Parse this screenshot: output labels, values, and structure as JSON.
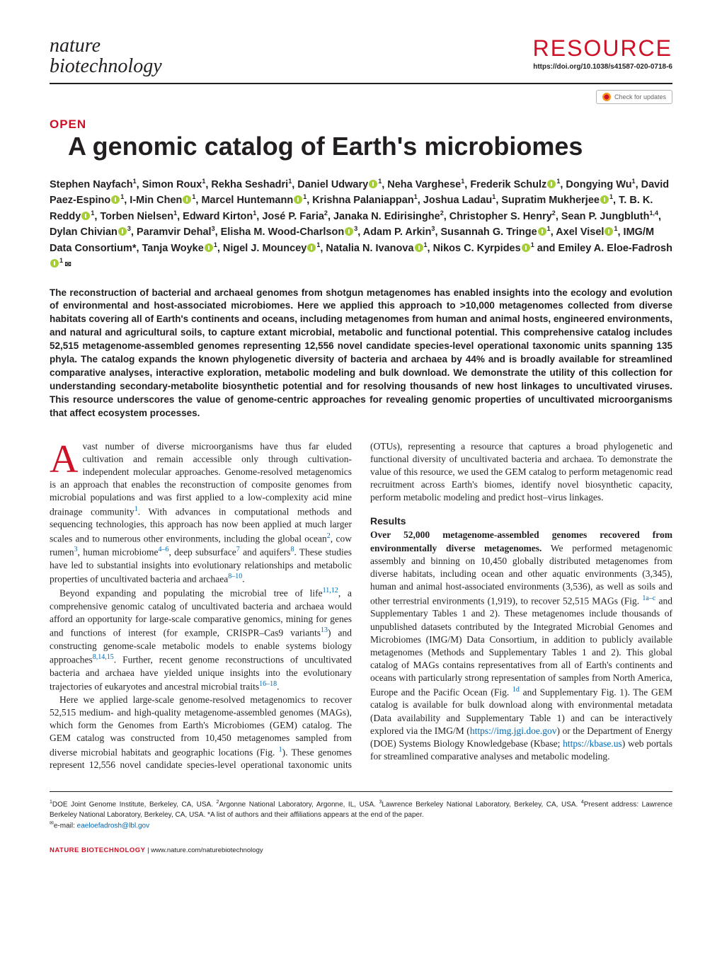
{
  "header": {
    "journal_line1": "nature",
    "journal_line2": "biotechnology",
    "section_label": "RESOURCE",
    "doi": "https://doi.org/10.1038/s41587-020-0718-6",
    "check_updates": "Check for updates"
  },
  "article": {
    "open_label": "OPEN",
    "title": "A genomic catalog of Earth's microbiomes"
  },
  "authors_html": "Stephen Nayfach<sup>1</sup>, Simon Roux<sup>1</sup>, Rekha Seshadri<sup>1</sup>, Daniel Udwary<span class='orcid'></span><sup>1</sup>, Neha Varghese<sup>1</sup>, Frederik Schulz<span class='orcid'></span><sup>1</sup>, Dongying Wu<sup>1</sup>, David Paez-Espino<span class='orcid'></span><sup>1</sup>, I-Min Chen<span class='orcid'></span><sup>1</sup>, Marcel Huntemann<span class='orcid'></span><sup>1</sup>, Krishna Palaniappan<sup>1</sup>, Joshua Ladau<sup>1</sup>, Supratim Mukherjee<span class='orcid'></span><sup>1</sup>, T. B. K. Reddy<span class='orcid'></span><sup>1</sup>, Torben Nielsen<sup>1</sup>, Edward Kirton<sup>1</sup>, José P. Faria<sup>2</sup>, Janaka N. Edirisinghe<sup>2</sup>, Christopher S. Henry<sup>2</sup>, Sean P. Jungbluth<sup>1,4</sup>, Dylan Chivian<span class='orcid'></span><sup>3</sup>, Paramvir Dehal<sup>3</sup>, Elisha M. Wood-Charlson<span class='orcid'></span><sup>3</sup>, Adam P. Arkin<sup>3</sup>, Susannah G. Tringe<span class='orcid'></span><sup>1</sup>, Axel Visel<span class='orcid'></span><sup>1</sup>, IMG/M Data Consortium*, Tanja Woyke<span class='orcid'></span><sup>1</sup>, Nigel J. Mouncey<span class='orcid'></span><sup>1</sup>, Natalia N. Ivanova<span class='orcid'></span><sup>1</sup>, Nikos C. Kyrpides<span class='orcid'></span><sup>1</sup> and Emiley A. Eloe-Fadrosh<span class='orcid'></span><sup>1 </sup><span class='mail-icon'></span>",
  "abstract": "The reconstruction of bacterial and archaeal genomes from shotgun metagenomes has enabled insights into the ecology and evolution of environmental and host-associated microbiomes. Here we applied this approach to >10,000 metagenomes collected from diverse habitats covering all of Earth's continents and oceans, including metagenomes from human and animal hosts, engineered environments, and natural and agricultural soils, to capture extant microbial, metabolic and functional potential. This comprehensive catalog includes 52,515 metagenome-assembled genomes representing 12,556 novel candidate species-level operational taxonomic units spanning 135 phyla. The catalog expands the known phylogenetic diversity of bacteria and archaea by 44% and is broadly available for streamlined comparative analyses, interactive exploration, metabolic modeling and bulk download. We demonstrate the utility of this collection for understanding secondary-metabolite biosynthetic potential and for resolving thousands of new host linkages to uncultivated viruses. This resource underscores the value of genome-centric approaches for revealing genomic properties of uncultivated microorganisms that affect ecosystem processes.",
  "body": {
    "p1": "vast number of diverse microorganisms have thus far eluded cultivation and remain accessible only through cultivation-independent molecular approaches. Genome-resolved metagenomics is an approach that enables the reconstruction of composite genomes from microbial populations and was first applied to a low-complexity acid mine drainage community",
    "p1b": ". With advances in computational methods and sequencing technologies, this approach has now been applied at much larger scales and to numerous other environments, including the global ocean",
    "p1c": ", cow rumen",
    "p1d": ", human microbiome",
    "p1e": ", deep subsurface",
    "p1f": " and aquifers",
    "p1g": ". These studies have led to substantial insights into evolutionary relationships and metabolic properties of uncultivated bacteria and archaea",
    "p1h": ".",
    "p2a": "Beyond expanding and populating the microbial tree of life",
    "p2b": ", a comprehensive genomic catalog of uncultivated bacteria and archaea would afford an opportunity for large-scale comparative genomics, mining for genes and functions of interest (for example, CRISPR–Cas9 variants",
    "p2c": ") and constructing genome-scale metabolic models to enable systems biology approaches",
    "p2d": ". Further, recent genome reconstructions of uncultivated bacteria and archaea have yielded unique insights into the evolutionary trajectories of eukaryotes and ancestral microbial traits",
    "p2e": ".",
    "p3": "Here we applied large-scale genome-resolved metagenomics to recover 52,515 medium- and high-quality metagenome-assembled genomes (MAGs), which form the Genomes from Earth's Microbiomes (GEM) catalog. The GEM catalog was constructed from 10,450 metagenomes sampled from diverse microbial habitats and geographic locations (Fig. ",
    "p3b": "). These genomes represent 12,556 novel candidate species-level operational taxonomic units",
    "p4": "(OTUs), representing a resource that captures a broad phylogenetic and functional diversity of uncultivated bacteria and archaea. To demonstrate the value of this resource, we used the GEM catalog to perform metagenomic read recruitment across Earth's biomes, identify novel biosynthetic capacity, perform metabolic modeling and predict host–virus linkages.",
    "results_head": "Results",
    "p5_runin": "Over 52,000 metagenome-assembled genomes recovered from environmentally diverse metagenomes.",
    "p5": " We performed metagenomic assembly and binning on 10,450 globally distributed metagenomes from diverse habitats, including ocean and other aquatic environments (3,345), human and animal host-associated environments (3,536), as well as soils and other terrestrial environments (1,919), to recover 52,515 MAGs (Fig. ",
    "p5b": " and Supplementary Tables 1 and 2). These metagenomes include thousands of unpublished datasets contributed by the Integrated Microbial Genomes and Microbiomes (IMG/M) Data Consortium, in addition to publicly available metagenomes (Methods and Supplementary Tables 1 and 2). This global catalog of MAGs contains representatives from all of Earth's continents and oceans with particularly strong representation of samples from North America, Europe and the Pacific Ocean (Fig. ",
    "p5c": " and Supplementary Fig. 1). The GEM catalog is available for bulk download along with environmental metadata (Data availability and Supplementary Table 1) and can be interactively explored via the IMG/M (",
    "p5d": ") or the Department of Energy (DOE) Systems Biology Knowledgebase (Kbase; ",
    "p5e": ") web portals for streamlined comparative analyses and metabolic modeling."
  },
  "refs": {
    "r1": "1",
    "r2": "2",
    "r3": "3",
    "r4_6": "4–6",
    "r7": "7",
    "r8": "8",
    "r8_10": "8–10",
    "r11_12": "11,12",
    "r13": "13",
    "r8_14_15": "8,14,15",
    "r16_18": "16–18",
    "fig1": "1",
    "fig1ac": "1a–c",
    "fig1d": "1d"
  },
  "links": {
    "img": "https://img.jgi.doe.gov",
    "kbase": "https://kbase.us"
  },
  "affiliations": "<sup>1</sup>DOE Joint Genome Institute, Berkeley, CA, USA. <sup>2</sup>Argonne National Laboratory, Argonne, IL, USA. <sup>3</sup>Lawrence Berkeley National Laboratory, Berkeley, CA, USA. <sup>4</sup>Present address: Lawrence Berkeley National Laboratory, Berkeley, CA, USA. *A list of authors and their affiliations appears at the end of the paper. <br><sup>✉</sup>e-mail: <span class='link'>eaeloefadrosh@lbl.gov</span>",
  "footer": {
    "journal": "NATURE BIOTECHNOLOGY",
    "url": "www.nature.com/naturebiotechnology"
  },
  "style": {
    "accent_red": "#ce1126",
    "link_blue": "#0068b4",
    "orcid_green": "#a6ce39",
    "text_color": "#231f20",
    "body_font_size_pt": 13.5,
    "title_font_size_pt": 36,
    "abstract_font_size_pt": 13.5,
    "column_count": 2
  }
}
